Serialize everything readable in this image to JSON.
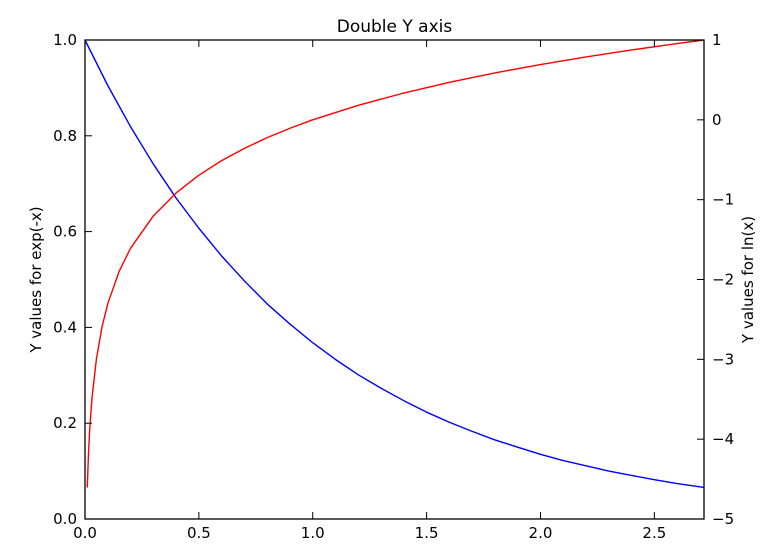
{
  "chart_data": {
    "type": "line",
    "title": "Double Y axis",
    "xlabel": "",
    "ylabel_left": "Y values for exp(-x)",
    "ylabel_right": "Y values for ln(x)",
    "xlim": [
      0.0,
      2.718
    ],
    "ylim_left": [
      0.0,
      1.0
    ],
    "ylim_right": [
      -5,
      1
    ],
    "x_ticks": [
      "0.0",
      "0.5",
      "1.0",
      "1.5",
      "2.0",
      "2.5"
    ],
    "y_left_ticks": [
      "0.0",
      "0.2",
      "0.4",
      "0.6",
      "0.8",
      "1.0"
    ],
    "y_right_ticks": [
      "−5",
      "−4",
      "−3",
      "−2",
      "−1",
      "0",
      "1"
    ],
    "grid": false,
    "series": [
      {
        "axis": "left",
        "color": "#0000ff",
        "x": [
          0.0,
          0.1,
          0.2,
          0.3,
          0.4,
          0.5,
          0.6,
          0.7,
          0.8,
          0.9,
          1.0,
          1.1,
          1.2,
          1.3,
          1.4,
          1.5,
          1.6,
          1.7,
          1.8,
          1.9,
          2.0,
          2.1,
          2.2,
          2.3,
          2.4,
          2.5,
          2.6,
          2.718
        ],
        "y": [
          1.0,
          0.905,
          0.819,
          0.741,
          0.67,
          0.607,
          0.549,
          0.497,
          0.449,
          0.407,
          0.368,
          0.333,
          0.301,
          0.273,
          0.247,
          0.223,
          0.202,
          0.183,
          0.165,
          0.15,
          0.135,
          0.122,
          0.111,
          0.1,
          0.091,
          0.082,
          0.074,
          0.066
        ]
      },
      {
        "axis": "right",
        "color": "#ff0000",
        "x": [
          0.01,
          0.015,
          0.02,
          0.03,
          0.05,
          0.075,
          0.1,
          0.15,
          0.2,
          0.3,
          0.4,
          0.5,
          0.6,
          0.7,
          0.8,
          0.9,
          1.0,
          1.2,
          1.4,
          1.6,
          1.8,
          2.0,
          2.2,
          2.4,
          2.6,
          2.718
        ],
        "y": [
          -4.605,
          -4.2,
          -3.912,
          -3.507,
          -2.996,
          -2.59,
          -2.303,
          -1.897,
          -1.609,
          -1.204,
          -0.916,
          -0.693,
          -0.511,
          -0.357,
          -0.223,
          -0.105,
          0.0,
          0.182,
          0.336,
          0.47,
          0.588,
          0.693,
          0.788,
          0.875,
          0.956,
          1.0
        ]
      }
    ]
  }
}
